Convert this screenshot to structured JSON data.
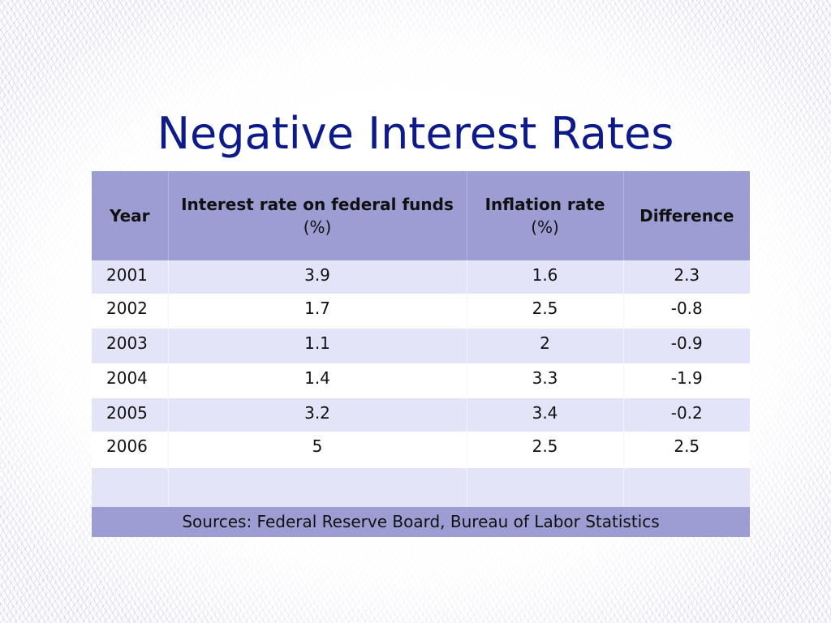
{
  "slide": {
    "title": "Negative Interest Rates"
  },
  "table": {
    "headers": {
      "year": "Year",
      "interest_main": "Interest rate on federal funds",
      "interest_unit": "(%)",
      "inflation_main": "Inflation rate",
      "inflation_unit": "(%)",
      "difference": "Difference"
    },
    "rows": [
      {
        "year": "2001",
        "interest": "3.9",
        "inflation": "1.6",
        "difference": "2.3"
      },
      {
        "year": "2002",
        "interest": "1.7",
        "inflation": "2.5",
        "difference": "-0.8"
      },
      {
        "year": "2003",
        "interest": "1.1",
        "inflation": "2",
        "difference": "-0.9"
      },
      {
        "year": "2004",
        "interest": "1.4",
        "inflation": "3.3",
        "difference": "-1.9"
      },
      {
        "year": "2005",
        "interest": "3.2",
        "inflation": "3.4",
        "difference": "-0.2"
      },
      {
        "year": "2006",
        "interest": "5",
        "inflation": "2.5",
        "difference": "2.5"
      }
    ],
    "sources": "Sources: Federal Reserve Board, Bureau of Labor Statistics"
  },
  "colors": {
    "title": "#0d1a8a",
    "header_bg": "#9b9dd3",
    "row_band": "#e4e4f8"
  }
}
